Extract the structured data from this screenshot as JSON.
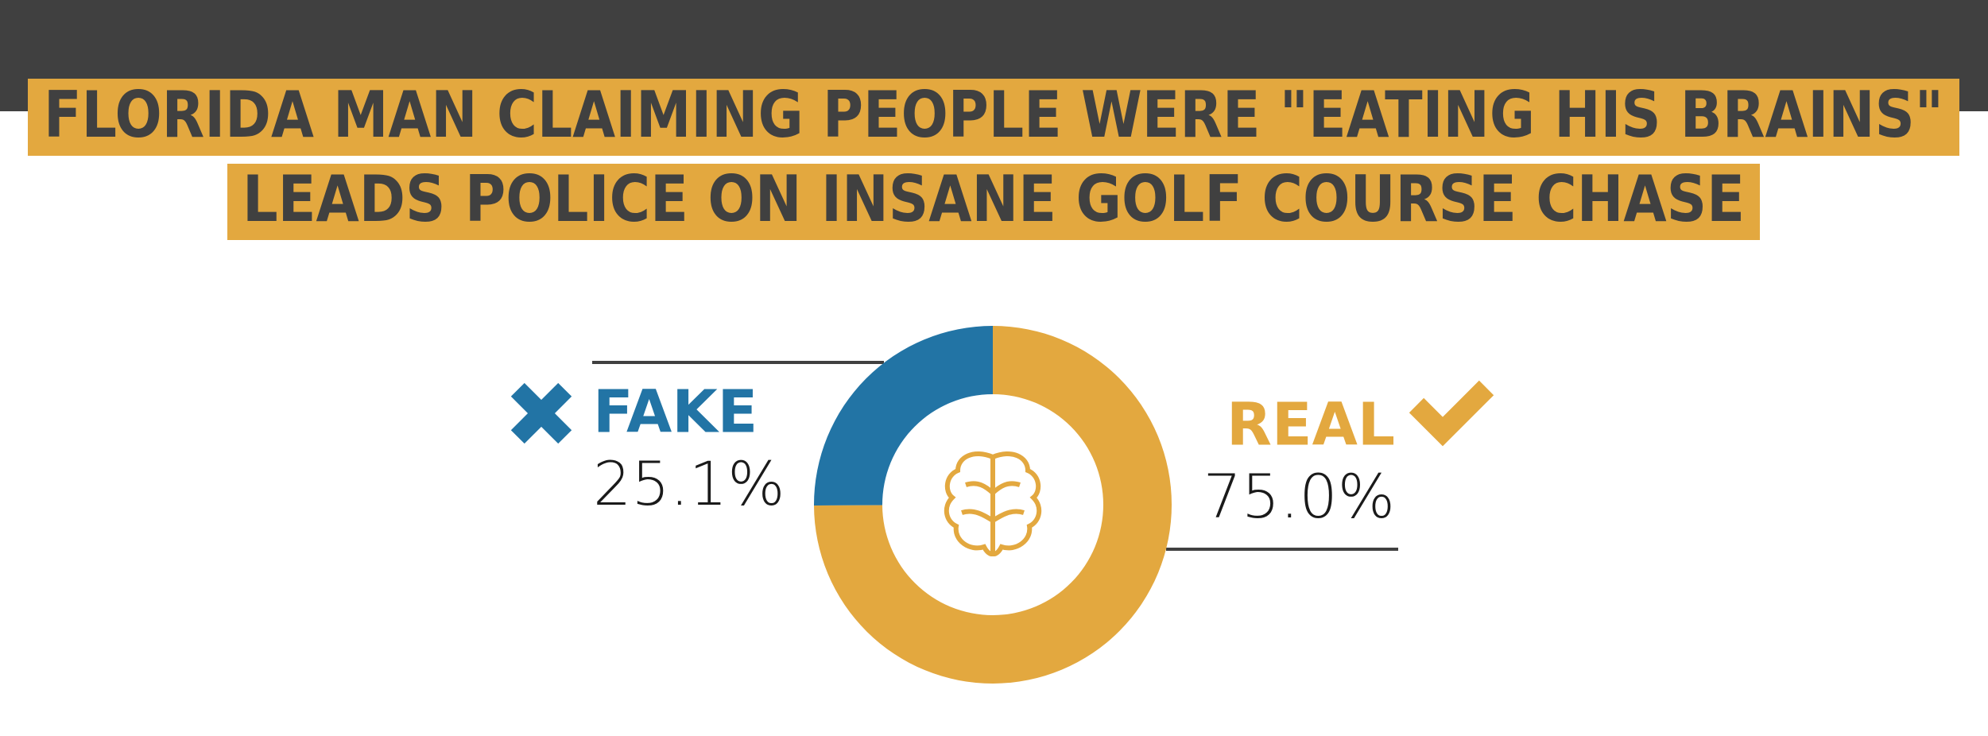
{
  "chart_data": {
    "type": "pie",
    "title": [
      "FLORIDA MAN CLAIMING PEOPLE WERE \"EATING HIS BRAINS\"",
      "LEADS POLICE ON INSANE GOLF COURSE CHASE"
    ],
    "categories": [
      "FAKE",
      "REAL"
    ],
    "values": [
      25.1,
      75.0
    ],
    "value_labels": [
      "25.1%",
      "75.0%"
    ],
    "colors": [
      "#2274a5",
      "#e3a83f"
    ]
  }
}
